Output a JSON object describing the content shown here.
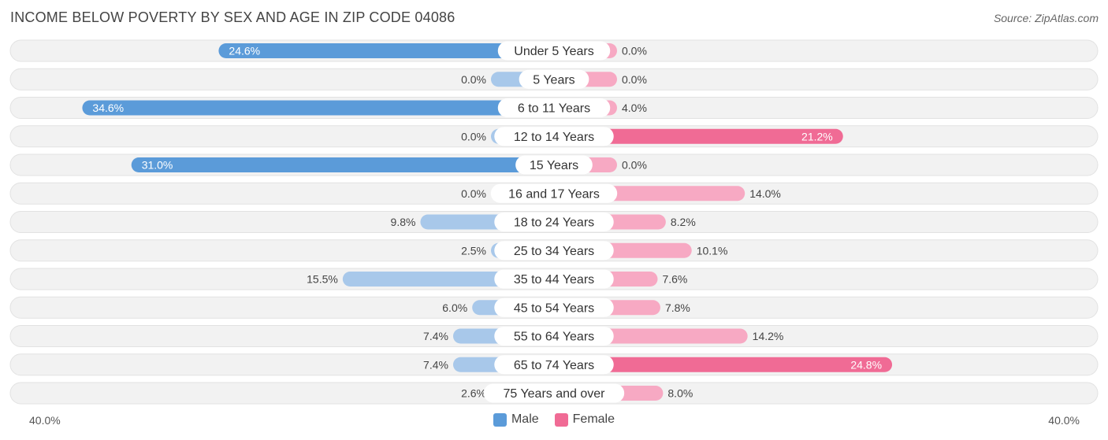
{
  "header": {
    "title": "INCOME BELOW POVERTY BY SEX AND AGE IN ZIP CODE 04086",
    "source": "Source: ZipAtlas.com"
  },
  "axis": {
    "left_label": "40.0%",
    "right_label": "40.0%"
  },
  "legend": {
    "male": "Male",
    "female": "Female"
  },
  "colors": {
    "male_strong": "#5b9bd9",
    "male_light": "#a8c8ea",
    "female_strong": "#f06b95",
    "female_light": "#f7a9c3",
    "row_bg": "#f2f2f2"
  },
  "chart_data": {
    "type": "bar",
    "orientation": "horizontal-diverging",
    "title": "INCOME BELOW POVERTY BY SEX AND AGE IN ZIP CODE 04086",
    "xlim": [
      -40,
      40
    ],
    "categories": [
      "Under 5 Years",
      "5 Years",
      "6 to 11 Years",
      "12 to 14 Years",
      "15 Years",
      "16 and 17 Years",
      "18 to 24 Years",
      "25 to 34 Years",
      "35 to 44 Years",
      "45 to 54 Years",
      "55 to 64 Years",
      "65 to 74 Years",
      "75 Years and over"
    ],
    "series": [
      {
        "name": "Male",
        "values": [
          24.6,
          0.0,
          34.6,
          0.0,
          31.0,
          0.0,
          9.8,
          2.5,
          15.5,
          6.0,
          7.4,
          7.4,
          2.6
        ],
        "labels": [
          "24.6%",
          "0.0%",
          "34.6%",
          "0.0%",
          "31.0%",
          "0.0%",
          "9.8%",
          "2.5%",
          "15.5%",
          "6.0%",
          "7.4%",
          "7.4%",
          "2.6%"
        ]
      },
      {
        "name": "Female",
        "values": [
          0.0,
          0.0,
          4.0,
          21.2,
          0.0,
          14.0,
          8.2,
          10.1,
          7.6,
          7.8,
          14.2,
          24.8,
          8.0
        ],
        "labels": [
          "0.0%",
          "0.0%",
          "4.0%",
          "21.2%",
          "0.0%",
          "14.0%",
          "8.2%",
          "10.1%",
          "7.6%",
          "7.8%",
          "14.2%",
          "24.8%",
          "8.0%"
        ]
      }
    ],
    "legend_position": "bottom-center"
  }
}
